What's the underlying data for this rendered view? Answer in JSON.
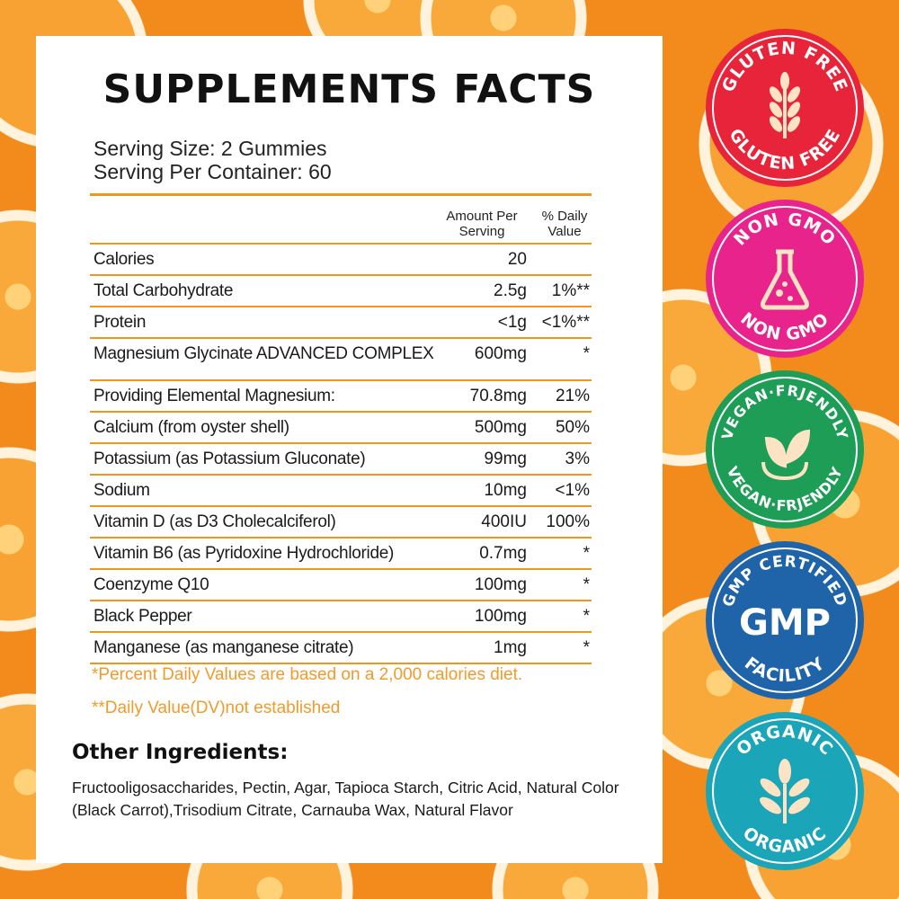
{
  "title": "SUPPLEMENTS FACTS",
  "serving": {
    "size": "Serving Size: 2 Gummies",
    "per_container": "Serving Per Container: 60"
  },
  "table": {
    "header_amount_1": "Amount Per",
    "header_amount_2": "Serving",
    "header_dv_1": "% Daily",
    "header_dv_2": "Value",
    "rows": [
      {
        "name": "Calories",
        "amount": "20",
        "dv": ""
      },
      {
        "name": "Total Carbohydrate",
        "amount": "2.5g",
        "dv": "1%**"
      },
      {
        "name": "Protein",
        "amount": "<1g",
        "dv": "<1%**"
      },
      {
        "name": "Magnesium Glycinate ADVANCED COMPLEX",
        "amount": "600mg",
        "dv": "*"
      },
      {
        "name": "Providing Elemental Magnesium:",
        "amount": "70.8mg",
        "dv": "21%"
      },
      {
        "name": "Calcium (from oyster shell)",
        "amount": "500mg",
        "dv": "50%"
      },
      {
        "name": "Potassium (as Potassium Gluconate)",
        "amount": "99mg",
        "dv": "3%"
      },
      {
        "name": "Sodium",
        "amount": "10mg",
        "dv": "<1%"
      },
      {
        "name": "Vitamin D (as D3 Cholecalciferol)",
        "amount": "400IU",
        "dv": "100%"
      },
      {
        "name": "Vitamin B6 (as Pyridoxine Hydrochloride)",
        "amount": "0.7mg",
        "dv": "*"
      },
      {
        "name": "Coenzyme Q10",
        "amount": "100mg",
        "dv": "*"
      },
      {
        "name": "Black Pepper",
        "amount": "100mg",
        "dv": "*"
      },
      {
        "name": "Manganese (as manganese citrate)",
        "amount": "1mg",
        "dv": "*"
      }
    ]
  },
  "notes": {
    "percent_dv": "*Percent Daily Values are based on a 2,000 calories diet.",
    "dv_not_established": "**Daily Value(DV)not established"
  },
  "other_ingredients": {
    "title": "Other Ingredients:",
    "text": "Fructooligosaccharides, Pectin, Agar, Tapioca Starch, Citric Acid, Natural Color (Black Carrot),Trisodium Citrate, Carnauba Wax, Natural Flavor"
  },
  "badges": [
    {
      "top": "GLUTEN FREE",
      "bottom": "GLUTEN FREE",
      "icon": "wheat-icon",
      "color": "#e8243a"
    },
    {
      "top": "NON GMO",
      "bottom": "NON GMO",
      "icon": "flask-icon",
      "color": "#e8238c"
    },
    {
      "top": "VEGAN·FRJENDLY",
      "bottom": "VEGAN·FRJENDLY",
      "icon": "leaf-icon",
      "color": "#1d9d55"
    },
    {
      "top": "GMP CERTIFIED",
      "center": "GMP",
      "bottom": "FACILITY",
      "color": "#1f63a8"
    },
    {
      "top": "ORGANIC",
      "bottom": "ORGANIC",
      "icon": "plant-icon",
      "color": "#1aa5b8"
    }
  ],
  "colors": {
    "accent_orange": "#f0961e",
    "note_orange": "#f29a2a"
  }
}
